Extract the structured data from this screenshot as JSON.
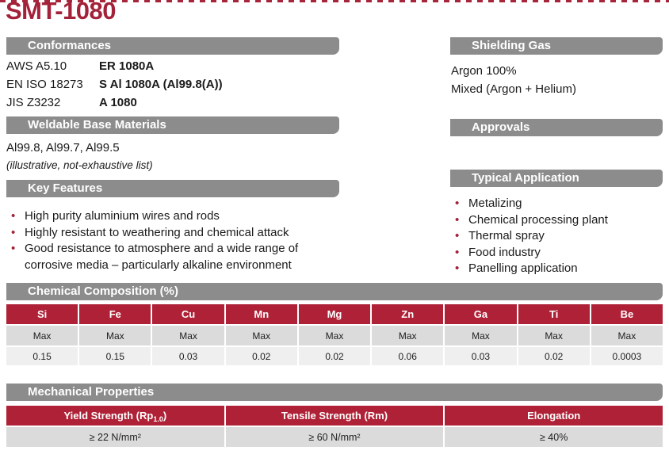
{
  "page": {
    "title": "SMT-1080"
  },
  "colors": {
    "accent_red": "#A32139",
    "table_header_red": "#AF2136",
    "section_bar_gray": "#8C8C8C",
    "row_gray_dark": "#DBDBDB",
    "row_gray_light": "#EFEFEF"
  },
  "sections": {
    "conformances": {
      "title": "Conformances",
      "rows": [
        {
          "standard": "AWS A5.10",
          "designation": "ER 1080A"
        },
        {
          "standard": "EN ISO 18273",
          "designation": "S Al 1080A (Al99.8(A))"
        },
        {
          "standard": "JIS Z3232",
          "designation": "A 1080"
        }
      ]
    },
    "weldable": {
      "title": "Weldable Base Materials",
      "materials": "Al99.8, Al99.7, Al99.5",
      "note": "(illustrative, not-exhaustive list)"
    },
    "key_features": {
      "title": "Key Features",
      "items": [
        "High purity aluminium wires and rods",
        "Highly resistant to weathering and chemical attack",
        "Good resistance to atmosphere and a wide range of corrosive media – particularly alkaline environment"
      ]
    },
    "shielding_gas": {
      "title": "Shielding Gas",
      "items": [
        "Argon 100%",
        "Mixed (Argon + Helium)"
      ]
    },
    "approvals": {
      "title": "Approvals"
    },
    "typical_application": {
      "title": "Typical Application",
      "items": [
        "Metalizing",
        "Chemical processing plant",
        "Thermal spray",
        "Food industry",
        "Panelling application"
      ]
    },
    "chemical_composition": {
      "title": "Chemical Composition (%)",
      "columns": [
        "Si",
        "Fe",
        "Cu",
        "Mn",
        "Mg",
        "Zn",
        "Ga",
        "Ti",
        "Be"
      ],
      "limit_row": [
        "Max",
        "Max",
        "Max",
        "Max",
        "Max",
        "Max",
        "Max",
        "Max",
        "Max"
      ],
      "values": [
        "0.15",
        "0.15",
        "0.03",
        "0.02",
        "0.02",
        "0.06",
        "0.03",
        "0.02",
        "0.0003"
      ]
    },
    "mechanical_properties": {
      "title": "Mechanical Properties",
      "columns": [
        {
          "main": "Yield Strength (Rp",
          "sub": "1.0",
          "tail": ")"
        },
        {
          "main": "Tensile Strength (Rm)",
          "sub": "",
          "tail": ""
        },
        {
          "main": "Elongation",
          "sub": "",
          "tail": ""
        }
      ],
      "values": [
        "≥ 22 N/mm²",
        "≥ 60 N/mm²",
        "≥ 40%"
      ]
    }
  }
}
